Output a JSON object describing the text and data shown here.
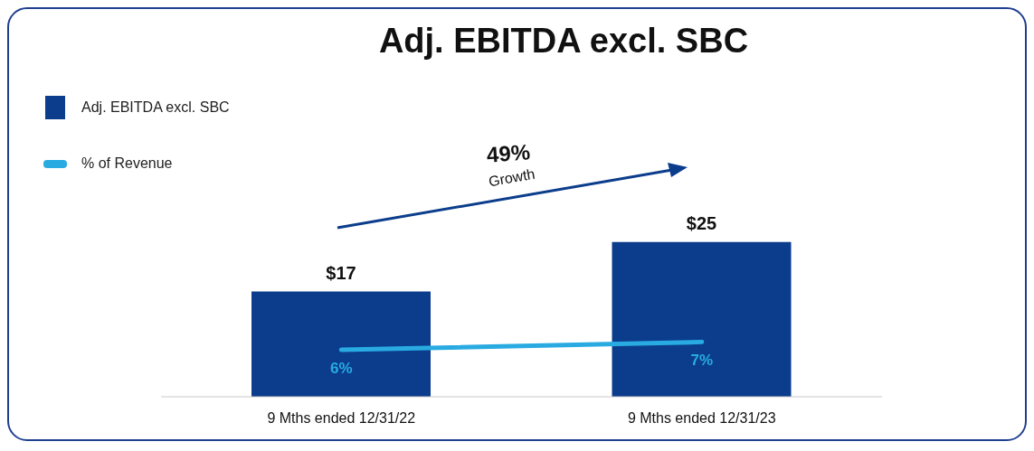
{
  "chart_data": {
    "type": "bar",
    "title": "Adj. EBITDA excl. SBC",
    "categories": [
      "9 Mths ended 12/31/22",
      "9 Mths ended 12/31/23"
    ],
    "series": [
      {
        "name": "Adj. EBITDA excl. SBC",
        "color": "#0b3d8c",
        "values": [
          17,
          25
        ],
        "value_labels": [
          "$17",
          "$25"
        ]
      },
      {
        "name": "% of Revenue",
        "type": "line",
        "axis": "y2",
        "color": "#29abe2",
        "values": [
          6,
          7
        ],
        "value_labels": [
          "6%",
          "7%"
        ]
      }
    ],
    "annotations": [
      "49%",
      "Growth"
    ],
    "legend": "top left",
    "grid": false,
    "marker": "none"
  }
}
